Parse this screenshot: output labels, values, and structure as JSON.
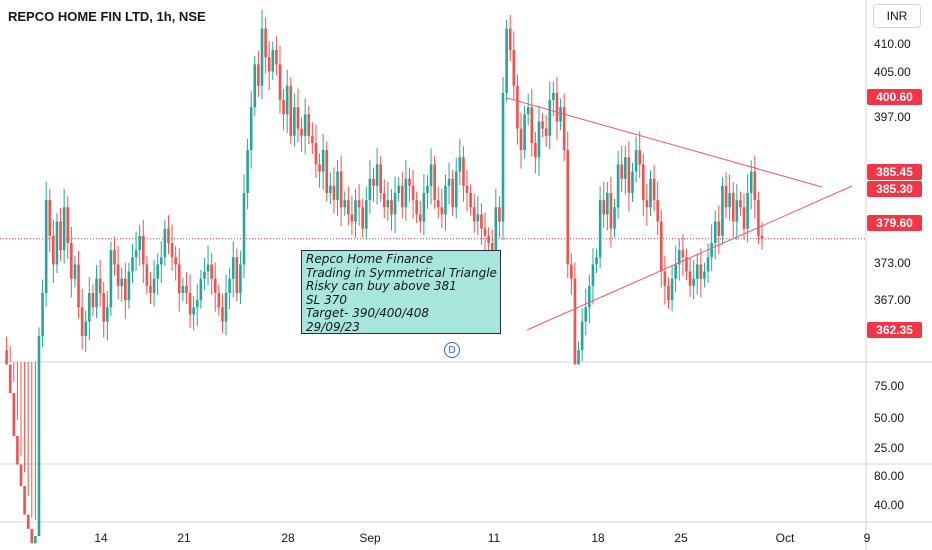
{
  "header": {
    "symbol_title": "REPCO HOME FIN LTD, 1h, NSE",
    "currency": "INR"
  },
  "colors": {
    "up": "#26a69a",
    "down": "#ef5350",
    "trendline": "#f25a6a",
    "current_price_line": "#f23645",
    "highlight_tag": "#f23645",
    "note_bg": "#a8e6dd"
  },
  "note": {
    "lines": [
      "Repco Home Finance",
      "Trading in Symmetrical Triangle",
      "Risky can buy above 381",
      "SL 370",
      "Target- 390/400/408",
      "29/09/23"
    ]
  },
  "dividend_marker": "D",
  "price_tags": [
    {
      "label": "400.60",
      "value": 400.6
    },
    {
      "label": "385.45",
      "value": 385.45
    },
    {
      "label": "385.30",
      "value": 385.3
    },
    {
      "label": "379.60",
      "value": 379.6
    },
    {
      "label": "362.35",
      "value": 362.35
    }
  ],
  "price_axis_labels": [
    "410.00",
    "405.00",
    "397.00",
    "373.00",
    "367.00"
  ],
  "lower_pane1_labels": [
    "75.00",
    "50.00",
    "25.00"
  ],
  "lower_pane2_labels": [
    "80.00",
    "40.00"
  ],
  "time_axis_labels": [
    "14",
    "21",
    "28",
    "Sep",
    "11",
    "18",
    "25",
    "Oct",
    "9"
  ],
  "chart_data": {
    "type": "candlestick",
    "title": "REPCO HOME FIN LTD, 1h, NSE",
    "timeframe": "1h",
    "exchange": "NSE",
    "currency": "INR",
    "x_ticks": [
      "14",
      "21",
      "28",
      "Sep",
      "11",
      "18",
      "25",
      "Oct",
      "9"
    ],
    "y_ticks": [
      367,
      373,
      397,
      405,
      410
    ],
    "ylim": [
      362.35,
      413
    ],
    "current_price": 379.6,
    "key_levels": [
      400.6,
      385.45,
      385.3,
      379.6,
      362.35
    ],
    "pattern": "Symmetrical Triangle",
    "closes": [
      364,
      362,
      358,
      352,
      348,
      345,
      341,
      339,
      337,
      338,
      366,
      372,
      385,
      380,
      376,
      382,
      378,
      384,
      379,
      374,
      376,
      370,
      366,
      368,
      372,
      370,
      374,
      372,
      368,
      370,
      378,
      376,
      373,
      374,
      371,
      375,
      377,
      378,
      380,
      376,
      373,
      372,
      374,
      376,
      377,
      381,
      379,
      377,
      376,
      372,
      373,
      372,
      369,
      370,
      371,
      374,
      375,
      376,
      374,
      372,
      370,
      368,
      372,
      374,
      377,
      372,
      376,
      386,
      392,
      398,
      404,
      401,
      409,
      405,
      403,
      406,
      404,
      399,
      397,
      401,
      394,
      398,
      395,
      394,
      397,
      394,
      393,
      390,
      389,
      392,
      386,
      387,
      385,
      389,
      384,
      385,
      383,
      382,
      385,
      384,
      381,
      385,
      388,
      387,
      390,
      386,
      384,
      385,
      383,
      386,
      387,
      384,
      388,
      387,
      385,
      383,
      382,
      386,
      387,
      390,
      385,
      384,
      383,
      387,
      388,
      384,
      389,
      391,
      387,
      386,
      384,
      382,
      383,
      381,
      380,
      379,
      378,
      384,
      382,
      400,
      409,
      406,
      401,
      395,
      392,
      397,
      398,
      393,
      391,
      396,
      395,
      394,
      399,
      400,
      396,
      398,
      392,
      376,
      374,
      362,
      364,
      368,
      370,
      373,
      376,
      377,
      385,
      383,
      386,
      381,
      384,
      390,
      388,
      391,
      386,
      389,
      392,
      390,
      385,
      384,
      388,
      385,
      382,
      375,
      373,
      371,
      374,
      376,
      378,
      377,
      375,
      373,
      374,
      376,
      374,
      375,
      377,
      379,
      382,
      380,
      387,
      384,
      386,
      382,
      385,
      384,
      381,
      386,
      389,
      385,
      380,
      379.6
    ],
    "annotations": {
      "triangle_upper": "descending trendline from Sep 11 high toward Oct",
      "triangle_lower": "ascending trendline from Sep 12 low toward Oct"
    }
  }
}
